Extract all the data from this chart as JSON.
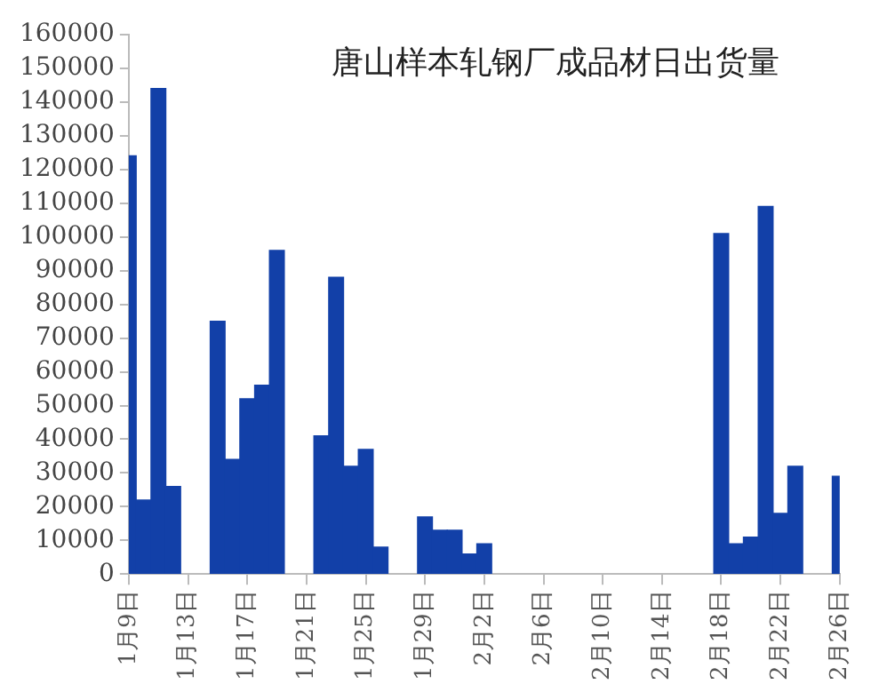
{
  "chart_data": {
    "type": "bar",
    "title": "唐山样本轧钢厂成品材日出货量",
    "categories": [
      "1月9日",
      null,
      null,
      null,
      "1月13日",
      null,
      null,
      null,
      "1月17日",
      null,
      null,
      null,
      "1月21日",
      null,
      null,
      null,
      "1月25日",
      null,
      null,
      null,
      "1月29日",
      null,
      null,
      null,
      "2月2日",
      null,
      null,
      null,
      "2月6日",
      null,
      null,
      null,
      "2月10日",
      null,
      null,
      null,
      "2月14日",
      null,
      null,
      null,
      "2月18日",
      null,
      null,
      null,
      "2月22日",
      null,
      null,
      null,
      "2月26日"
    ],
    "values": [
      124000,
      22000,
      144000,
      26000,
      null,
      null,
      75000,
      34000,
      52000,
      56000,
      96000,
      null,
      null,
      41000,
      88000,
      32000,
      37000,
      8000,
      null,
      null,
      17000,
      13000,
      13000,
      6000,
      9000,
      null,
      null,
      null,
      null,
      null,
      null,
      null,
      null,
      null,
      null,
      null,
      null,
      null,
      null,
      null,
      101000,
      9000,
      11000,
      109000,
      18000,
      32000,
      null,
      null,
      29000
    ],
    "color": "#1240a8",
    "ylim": [
      0,
      160000
    ],
    "yticks": [
      0,
      10000,
      20000,
      30000,
      40000,
      50000,
      60000,
      70000,
      80000,
      90000,
      100000,
      110000,
      120000,
      130000,
      140000,
      150000,
      160000
    ],
    "grid": false,
    "legend": false
  }
}
